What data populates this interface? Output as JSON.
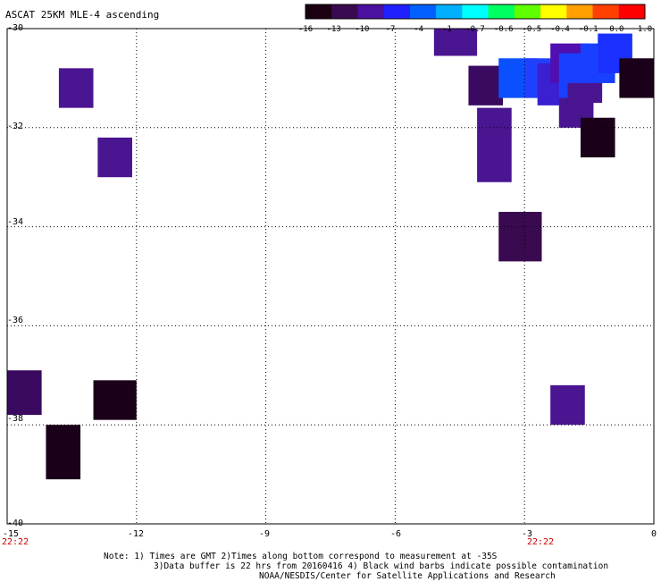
{
  "title": "ASCAT 25KM MLE-4 ascending",
  "colorbar": {
    "labels": [
      "-16",
      "-13",
      "-10",
      "-7",
      "-4",
      "-1",
      "-0.7",
      "-0.6",
      "-0.5",
      "-0.4",
      "-0.1",
      "0.0",
      "1.0"
    ],
    "colors": [
      "#1a0010",
      "#3a0a50",
      "#4a10a0",
      "#2020ff",
      "#0060ff",
      "#00b0ff",
      "#00ffff",
      "#00ff60",
      "#60ff00",
      "#ffff00",
      "#ffa000",
      "#ff4000",
      "#ff0000"
    ]
  },
  "axes": {
    "y_labels": [
      "-30",
      "-32",
      "-34",
      "-36",
      "-38",
      "-40"
    ],
    "x_labels": [
      "-15",
      "-12",
      "-9",
      "-6",
      "-3",
      "0"
    ],
    "time_left": "22:22",
    "time_right": "22:22"
  },
  "notes": {
    "line1": "Note: 1) Times are GMT 2)Times along bottom correspond to measurement at -35S",
    "line2": "3)Data buffer is 22 hrs from 20160416 4) Black wind barbs indicate possible contamination",
    "line3": "NOAA/NESDIS/Center for Satellite Applications and Research"
  },
  "map_data": {
    "lon_range": [
      -15,
      0
    ],
    "lat_range": [
      -40,
      -30
    ],
    "cells": [
      {
        "lon": -13.8,
        "lat": -30.8,
        "w": 0.8,
        "h": 0.8,
        "color": "#4a1590"
      },
      {
        "lon": -12.9,
        "lat": -32.2,
        "w": 0.8,
        "h": 0.8,
        "color": "#4a1590"
      },
      {
        "lon": -5.1,
        "lat": -30.0,
        "w": 1.0,
        "h": 0.55,
        "color": "#4a1590"
      },
      {
        "lon": -4.3,
        "lat": -30.75,
        "w": 0.8,
        "h": 0.8,
        "color": "#3a0a60"
      },
      {
        "lon": -3.6,
        "lat": -30.6,
        "w": 0.9,
        "h": 0.8,
        "color": "#0a50ff"
      },
      {
        "lon": -3.0,
        "lat": -30.6,
        "w": 0.8,
        "h": 0.8,
        "color": "#2040ff"
      },
      {
        "lon": -2.7,
        "lat": -30.7,
        "w": 1.0,
        "h": 0.85,
        "color": "#3a20d0"
      },
      {
        "lon": -2.4,
        "lat": -30.3,
        "w": 0.9,
        "h": 0.8,
        "color": "#5010b0"
      },
      {
        "lon": -2.2,
        "lat": -30.5,
        "w": 1.0,
        "h": 0.9,
        "color": "#1a40ff"
      },
      {
        "lon": -1.7,
        "lat": -30.3,
        "w": 0.8,
        "h": 0.8,
        "color": "#1a40ff"
      },
      {
        "lon": -1.3,
        "lat": -30.1,
        "w": 0.8,
        "h": 0.8,
        "color": "#1a30ff"
      },
      {
        "lon": -2.2,
        "lat": -31.4,
        "w": 0.8,
        "h": 0.6,
        "color": "#4a1590"
      },
      {
        "lon": -2.0,
        "lat": -31.1,
        "w": 0.8,
        "h": 0.4,
        "color": "#4a1590"
      },
      {
        "lon": -1.7,
        "lat": -31.8,
        "w": 0.8,
        "h": 0.8,
        "color": "#1a0018"
      },
      {
        "lon": -0.8,
        "lat": -30.6,
        "w": 0.8,
        "h": 0.8,
        "color": "#1a0018"
      },
      {
        "lon": -4.1,
        "lat": -31.6,
        "w": 0.8,
        "h": 1.5,
        "color": "#4a1590"
      },
      {
        "lon": -3.6,
        "lat": -33.7,
        "w": 1.0,
        "h": 1.0,
        "color": "#3a0a50"
      },
      {
        "lon": -2.4,
        "lat": -37.2,
        "w": 0.8,
        "h": 0.8,
        "color": "#4a1590"
      },
      {
        "lon": -15.0,
        "lat": -36.9,
        "w": 0.8,
        "h": 0.9,
        "color": "#3a0a60"
      },
      {
        "lon": -13.0,
        "lat": -37.1,
        "w": 1.0,
        "h": 0.8,
        "color": "#1a0018"
      },
      {
        "lon": -14.1,
        "lat": -38.0,
        "w": 0.8,
        "h": 1.1,
        "color": "#1a0018"
      }
    ]
  }
}
